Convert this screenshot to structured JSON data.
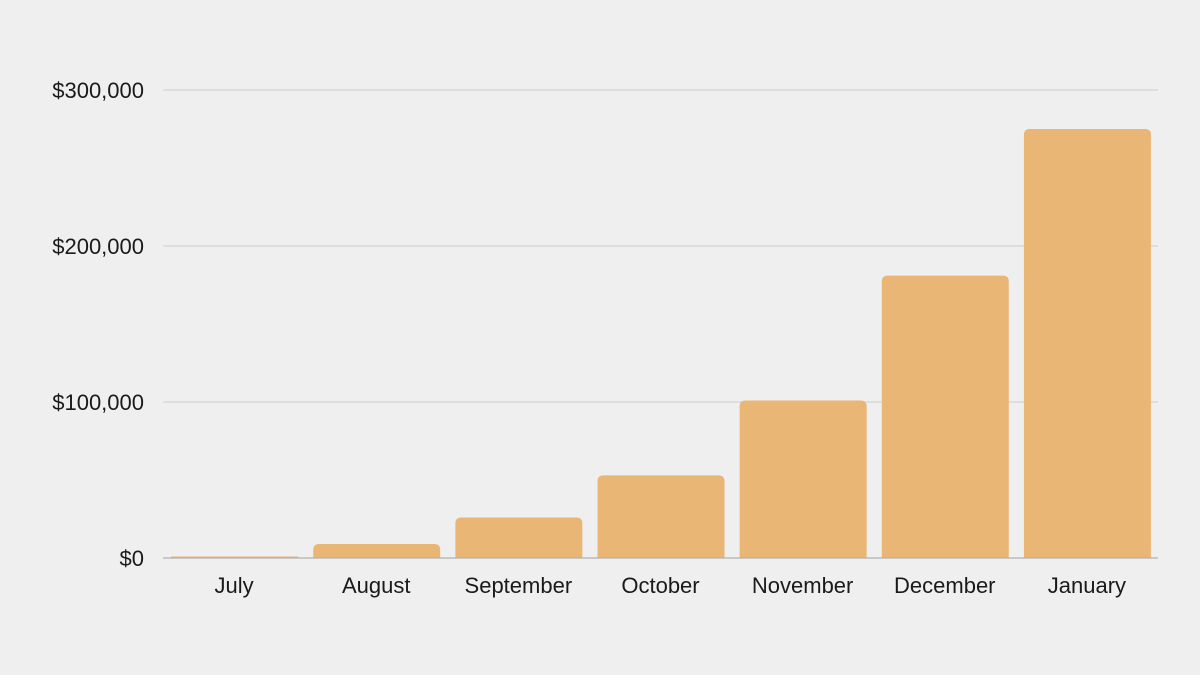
{
  "chart_data": {
    "type": "bar",
    "categories": [
      "July",
      "August",
      "September",
      "October",
      "November",
      "December",
      "January"
    ],
    "values": [
      1000,
      9000,
      26000,
      53000,
      101000,
      181000,
      275000
    ],
    "ylim": [
      0,
      300000
    ],
    "yticks": [
      0,
      100000,
      200000,
      300000
    ],
    "ytick_labels": [
      "$0",
      "$100,000",
      "$200,000",
      "$300,000"
    ],
    "title": "",
    "xlabel": "",
    "ylabel": "",
    "grid": true,
    "legend": "none",
    "colors": {
      "bar": "#e9b676",
      "background": "#efefef",
      "grid": "#cccccc",
      "baseline": "#b0b0b0",
      "text": "#1a1a1a"
    }
  }
}
